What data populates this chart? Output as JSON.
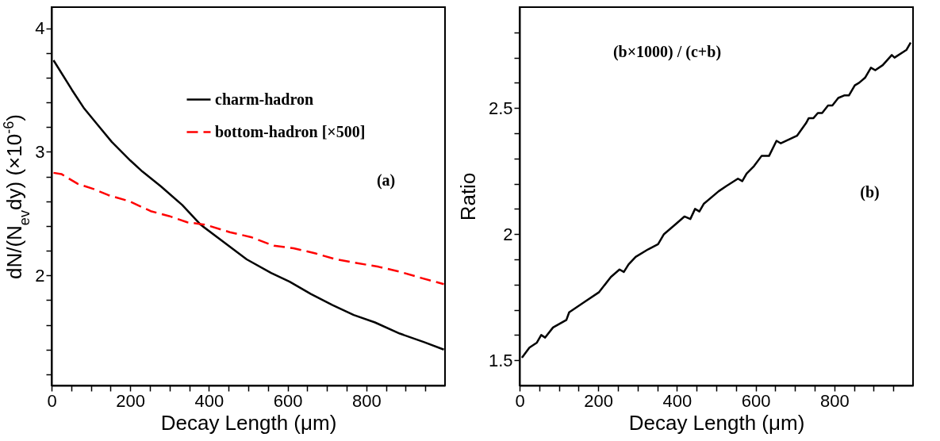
{
  "chart_data": [
    {
      "type": "line",
      "xlabel": "Decay Length (μm)",
      "ylabel": "dN/(N$_{ev}$dy) (×10$^{-6}$)",
      "xlim": [
        0,
        1000
      ],
      "xticks": [
        0,
        {
          "value": 50,
          "label": null
        },
        {
          "value": 100,
          "label": null
        },
        {
          "value": 150,
          "label": null
        },
        200,
        {
          "value": 250,
          "label": null
        },
        {
          "value": 300,
          "label": null
        },
        {
          "value": 350,
          "label": null
        },
        400,
        {
          "value": 450,
          "label": null
        },
        {
          "value": 500,
          "label": null
        },
        {
          "value": 550,
          "label": null
        },
        600,
        {
          "value": 650,
          "label": null
        },
        {
          "value": 700,
          "label": null
        },
        {
          "value": 750,
          "label": null
        },
        800,
        {
          "value": 850,
          "label": null
        },
        {
          "value": 900,
          "label": null
        },
        {
          "value": 950,
          "label": null
        }
      ],
      "ylim": [
        1.11,
        4.17
      ],
      "yticks": [
        {
          "value": 1.2,
          "label": null
        },
        {
          "value": 1.4,
          "label": null
        },
        {
          "value": 1.6,
          "label": null
        },
        {
          "value": 1.8,
          "label": null
        },
        2,
        {
          "value": 2.2,
          "label": null
        },
        {
          "value": 2.4,
          "label": null
        },
        {
          "value": 2.6,
          "label": null
        },
        {
          "value": 2.8,
          "label": null
        },
        3,
        {
          "value": 3.2,
          "label": null
        },
        {
          "value": 3.4,
          "label": null
        },
        {
          "value": 3.6,
          "label": null
        },
        {
          "value": 3.8,
          "label": null
        },
        4
      ],
      "legend": "top right",
      "annotations": [
        "(a)"
      ],
      "series": [
        {
          "name": "charm-hadron",
          "color": "#000000",
          "line_style": "solid",
          "x": [
            5,
            52,
            83,
            114,
            153,
            200,
            231,
            278,
            332,
            379,
            433,
            496,
            558,
            605,
            659,
            714,
            768,
            822,
            885,
            947,
            997
          ],
          "values": [
            3.74,
            3.5,
            3.35,
            3.23,
            3.08,
            2.93,
            2.84,
            2.72,
            2.57,
            2.41,
            2.28,
            2.13,
            2.02,
            1.95,
            1.85,
            1.76,
            1.68,
            1.62,
            1.53,
            1.46,
            1.4
          ]
        },
        {
          "name": "bottom-hadron [×500]",
          "color": "#ff0000",
          "line_style": "dashed",
          "x": [
            5,
            25,
            67,
            106,
            144,
            198,
            252,
            299,
            345,
            391,
            453,
            507,
            565,
            615,
            669,
            723,
            777,
            831,
            885,
            939,
            997
          ],
          "values": [
            2.83,
            2.82,
            2.74,
            2.7,
            2.65,
            2.6,
            2.52,
            2.48,
            2.43,
            2.41,
            2.35,
            2.31,
            2.24,
            2.22,
            2.18,
            2.13,
            2.1,
            2.07,
            2.03,
            1.98,
            1.93
          ]
        }
      ]
    },
    {
      "type": "line",
      "xlabel": "Decay Length (μm)",
      "ylabel": "Ratio",
      "xlim": [
        0,
        1000
      ],
      "xticks": [
        0,
        {
          "value": 50,
          "label": null
        },
        {
          "value": 100,
          "label": null
        },
        {
          "value": 150,
          "label": null
        },
        200,
        {
          "value": 250,
          "label": null
        },
        {
          "value": 300,
          "label": null
        },
        {
          "value": 350,
          "label": null
        },
        400,
        {
          "value": 450,
          "label": null
        },
        {
          "value": 500,
          "label": null
        },
        {
          "value": 550,
          "label": null
        },
        600,
        {
          "value": 650,
          "label": null
        },
        {
          "value": 700,
          "label": null
        },
        {
          "value": 750,
          "label": null
        },
        800,
        {
          "value": 850,
          "label": null
        },
        {
          "value": 900,
          "label": null
        },
        {
          "value": 950,
          "label": null
        }
      ],
      "ylim": [
        1.4,
        2.9
      ],
      "yticks": [
        1.5,
        {
          "value": 1.6,
          "label": null
        },
        {
          "value": 1.7,
          "label": null
        },
        {
          "value": 1.8,
          "label": null
        },
        {
          "value": 1.9,
          "label": null
        },
        2,
        {
          "value": 2.1,
          "label": null
        },
        {
          "value": 2.2,
          "label": null
        },
        {
          "value": 2.3,
          "label": null
        },
        {
          "value": 2.4,
          "label": null
        },
        2.5,
        {
          "value": 2.6,
          "label": null
        },
        {
          "value": 2.7,
          "label": null
        },
        {
          "value": 2.8,
          "label": null
        }
      ],
      "annotations": [
        "(b×1000) / (c+b)",
        "(b)"
      ],
      "series": [
        {
          "color": "#000000",
          "line_style": "solid",
          "x": [
            6,
            25,
            44,
            55,
            65,
            85,
            119,
            126,
            164,
            202,
            232,
            254,
            265,
            277,
            295,
            327,
            352,
            367,
            397,
            419,
            434,
            446,
            457,
            468,
            506,
            525,
            555,
            566,
            577,
            596,
            615,
            634,
            653,
            664,
            705,
            728,
            735,
            747,
            758,
            769,
            784,
            795,
            810,
            825,
            837,
            852,
            863,
            878,
            893,
            904,
            923,
            946,
            953,
            983,
            994
          ],
          "values": [
            1.51,
            1.55,
            1.57,
            1.6,
            1.59,
            1.63,
            1.66,
            1.69,
            1.73,
            1.77,
            1.83,
            1.86,
            1.85,
            1.88,
            1.91,
            1.94,
            1.96,
            2.0,
            2.04,
            2.07,
            2.06,
            2.1,
            2.09,
            2.12,
            2.17,
            2.19,
            2.22,
            2.21,
            2.24,
            2.27,
            2.31,
            2.31,
            2.37,
            2.36,
            2.39,
            2.44,
            2.46,
            2.46,
            2.48,
            2.48,
            2.51,
            2.51,
            2.54,
            2.55,
            2.55,
            2.59,
            2.6,
            2.62,
            2.66,
            2.65,
            2.67,
            2.71,
            2.7,
            2.73,
            2.76
          ]
        }
      ]
    }
  ]
}
